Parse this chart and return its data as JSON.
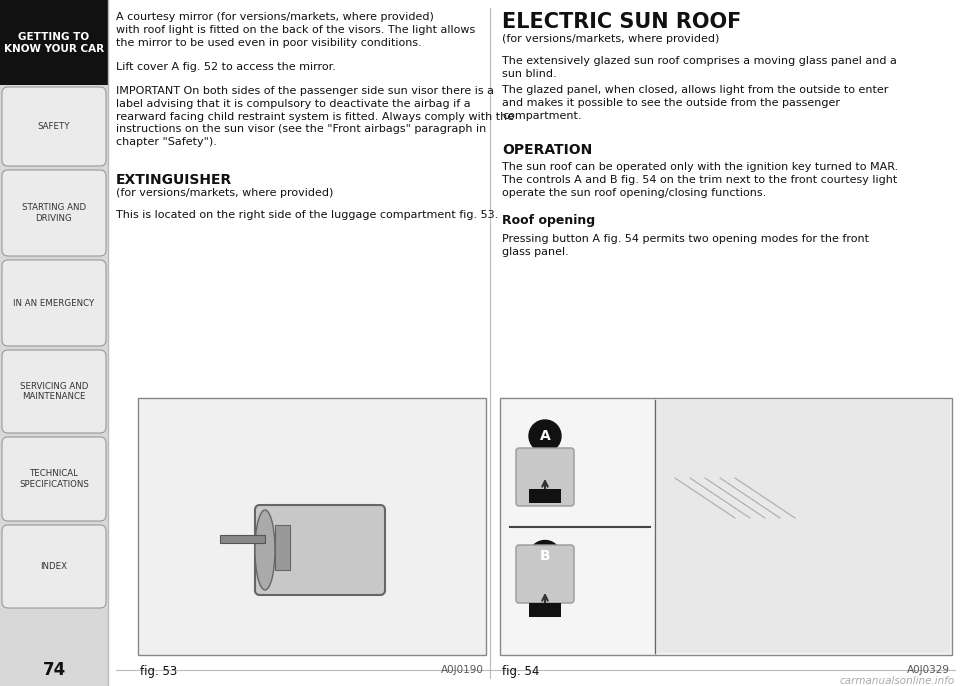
{
  "page_number": "74",
  "bg_color": "#ffffff",
  "sidebar_bg": "#ebebeb",
  "sidebar_active_bg": "#1a1a1a",
  "sidebar_active_text": "#ffffff",
  "sidebar_text_color": "#333333",
  "sidebar_border_color": "#aaaaaa",
  "sidebar_items": [
    {
      "label": "GETTING TO\nKNOW YOUR CAR",
      "active": true
    },
    {
      "label": "SAFETY",
      "active": false
    },
    {
      "label": "STARTING AND\nDRIVING",
      "active": false
    },
    {
      "label": "IN AN EMERGENCY",
      "active": false
    },
    {
      "label": "SERVICING AND\nMAINTENANCE",
      "active": false
    },
    {
      "label": "TECHNICAL\nSPECIFICATIONS",
      "active": false
    },
    {
      "label": "INDEX",
      "active": false
    }
  ],
  "left_blocks": [
    {
      "type": "body",
      "text": "A courtesy mirror (for versions/markets, where provided)\nwith roof light is fitted on the back of the visors. The light allows\nthe mirror to be used even in poor visibility conditions."
    },
    {
      "type": "spacer"
    },
    {
      "type": "body",
      "text": "Lift cover A fig. 52 to access the mirror."
    },
    {
      "type": "spacer"
    },
    {
      "type": "body",
      "text": "IMPORTANT On both sides of the passenger side sun visor there is a\nlabel advising that it is compulsory to deactivate the airbag if a\nrearward facing child restraint system is fitted. Always comply with the\ninstructions on the sun visor (see the \"Front airbags\" paragraph in\nchapter \"Safety\")."
    },
    {
      "type": "spacer_big"
    },
    {
      "type": "heading",
      "text": "EXTINGUISHER"
    },
    {
      "type": "body_small",
      "text": "(for versions/markets, where provided)"
    },
    {
      "type": "spacer"
    },
    {
      "type": "body",
      "text": "This is located on the right side of the luggage compartment fig. 53."
    }
  ],
  "right_blocks": [
    {
      "type": "main_heading",
      "text": "ELECTRIC SUN ROOF"
    },
    {
      "type": "body_small",
      "text": "(for versions/markets, where provided)"
    },
    {
      "type": "spacer"
    },
    {
      "type": "body",
      "text": "The extensively glazed sun roof comprises a moving glass panel and a\nsun blind."
    },
    {
      "type": "body",
      "text": "The glazed panel, when closed, allows light from the outside to enter\nand makes it possible to see the outside from the passenger\ncompartment."
    },
    {
      "type": "spacer_big"
    },
    {
      "type": "heading",
      "text": "OPERATION"
    },
    {
      "type": "spacer_small"
    },
    {
      "type": "body",
      "text": "The sun roof can be operated only with the ignition key turned to MAR.\nThe controls A and B fig. 54 on the trim next to the front courtesy light\noperate the sun roof opening/closing functions."
    },
    {
      "type": "spacer"
    },
    {
      "type": "subheading2",
      "text": "Roof opening"
    },
    {
      "type": "spacer_small"
    },
    {
      "type": "body",
      "text": "Pressing button A fig. 54 permits two opening modes for the front\nglass panel."
    }
  ],
  "fig53_label": "fig. 53",
  "fig53_code": "A0J0190",
  "fig54_label": "fig. 54",
  "fig54_code": "A0J0329",
  "watermark_text": "carmanualsonline.info"
}
